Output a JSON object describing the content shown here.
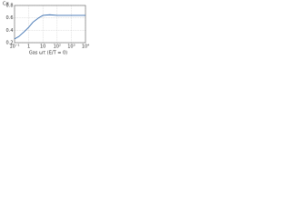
{
  "chart_data": {
    "type": "line",
    "y_label": "Cα",
    "x_label": "Gas ωτ (E/T = 0)",
    "x": [
      0.1,
      0.2,
      0.5,
      1,
      2,
      5,
      10,
      30,
      100,
      1000,
      10000
    ],
    "series": [
      {
        "name": "Cα",
        "color": "#3a6fb0",
        "values": [
          0.26,
          0.3,
          0.38,
          0.45,
          0.53,
          0.6,
          0.64,
          0.65,
          0.64,
          0.64,
          0.64
        ]
      }
    ],
    "xlog": true,
    "xlim": [
      0.1,
      10000
    ],
    "xticks": [
      {
        "value": 0.1,
        "label": "10⁻¹"
      },
      1,
      10,
      {
        "value": 100,
        "label": "10²"
      },
      {
        "value": 1000,
        "label": "10³"
      },
      {
        "value": 10000,
        "label": "10⁴"
      }
    ],
    "ylim": [
      0.2,
      0.8
    ],
    "yticks": [
      0.2,
      0.4,
      0.6,
      0.8
    ],
    "grid": true
  }
}
